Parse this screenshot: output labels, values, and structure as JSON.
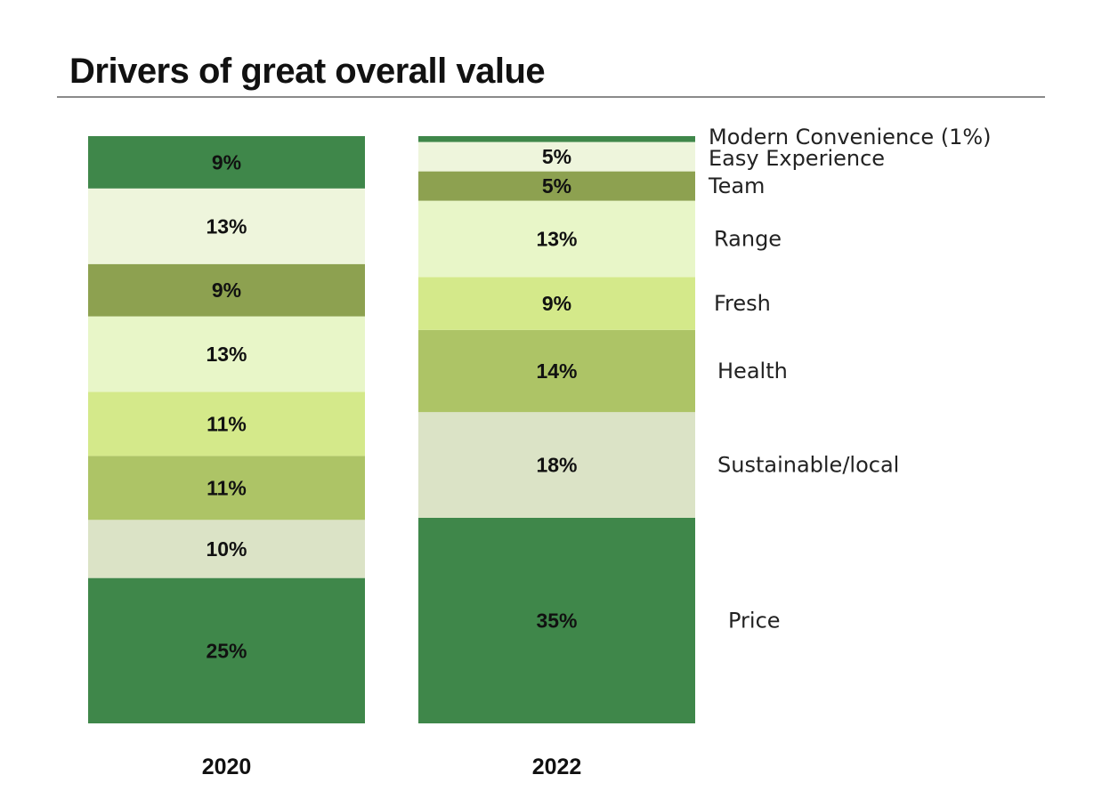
{
  "title": "Drivers of great overall value",
  "chart_data": {
    "type": "bar",
    "stacked": true,
    "percent_stacked": true,
    "categories": [
      "2020",
      "2022"
    ],
    "ylim": [
      0,
      100
    ],
    "series": [
      {
        "name": "Price",
        "values": [
          25,
          35
        ],
        "labels": [
          "25%",
          "35%"
        ],
        "color": "#3f874a"
      },
      {
        "name": "Sustainable/local",
        "values": [
          10,
          18
        ],
        "labels": [
          "10%",
          "18%"
        ],
        "color": "#dbe3c6"
      },
      {
        "name": "Health",
        "values": [
          11,
          14
        ],
        "labels": [
          "11%",
          "14%"
        ],
        "color": "#adc466"
      },
      {
        "name": "Fresh",
        "values": [
          11,
          9
        ],
        "labels": [
          "11%",
          "9%"
        ],
        "color": "#d4e98a"
      },
      {
        "name": "Range",
        "values": [
          13,
          13
        ],
        "labels": [
          "13%",
          "13%"
        ],
        "color": "#e8f6c8"
      },
      {
        "name": "Team",
        "values": [
          9,
          5
        ],
        "labels": [
          "9%",
          "5%"
        ],
        "color": "#8da150"
      },
      {
        "name": "Easy Experience",
        "values": [
          13,
          5
        ],
        "labels": [
          "13%",
          "5%"
        ],
        "color": "#eef5dc"
      },
      {
        "name": "Modern Convenience (1%)",
        "values": [
          9,
          1
        ],
        "labels": [
          "9%",
          ""
        ],
        "color": "#3f874a"
      }
    ],
    "legend_position": "right",
    "grid": false
  }
}
